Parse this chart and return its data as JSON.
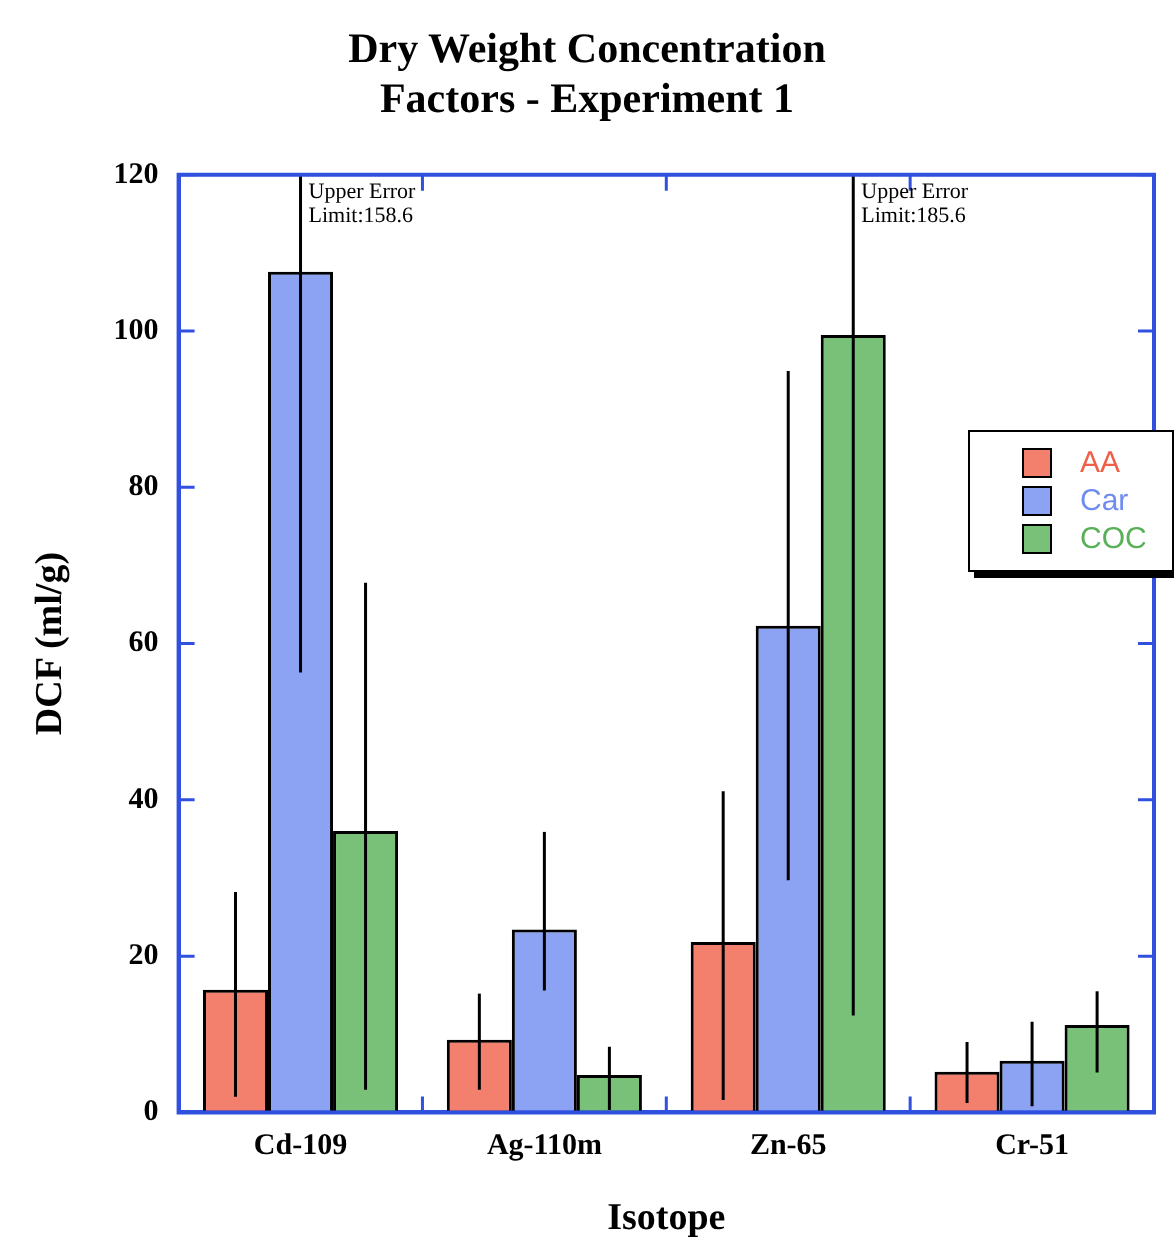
{
  "chart_data": {
    "type": "bar",
    "title": "Dry Weight Concentration\nFactors - Experiment 1",
    "xlabel": "Isotope",
    "ylabel": "DCF (ml/g)",
    "categories": [
      "Cd-109",
      "Ag-110m",
      "Zn-65",
      "Cr-51"
    ],
    "series": [
      {
        "name": "AA",
        "color": "#f06048",
        "values": [
          15.7,
          9.3,
          21.8,
          5.2
        ],
        "errors": [
          [
            2,
            28.2
          ],
          [
            2.9,
            15.2
          ],
          [
            1.6,
            41.1
          ],
          [
            1.2,
            9
          ]
        ]
      },
      {
        "name": "Car",
        "color": "#6f8cf0",
        "values": [
          107.6,
          23.4,
          62.3,
          6.6
        ],
        "errors": [
          [
            56.3,
            120
          ],
          [
            15.6,
            35.9
          ],
          [
            29.7,
            94.9
          ],
          [
            0.8,
            11.6
          ]
        ]
      },
      {
        "name": "COC",
        "color": "#58b058",
        "values": [
          36,
          4.8,
          99.5,
          11.2
        ],
        "errors": [
          [
            2.9,
            67.8
          ],
          [
            0.3,
            8.4
          ],
          [
            12.4,
            120
          ],
          [
            5.1,
            15.5
          ]
        ]
      }
    ],
    "ylim": [
      0,
      120
    ],
    "yticks": [
      0,
      20,
      40,
      60,
      80,
      100,
      120
    ],
    "grid": false,
    "legend": "right",
    "annotations": [
      "Upper Error\nLimit:158.6",
      "Upper Error\nLimit:185.6"
    ]
  }
}
